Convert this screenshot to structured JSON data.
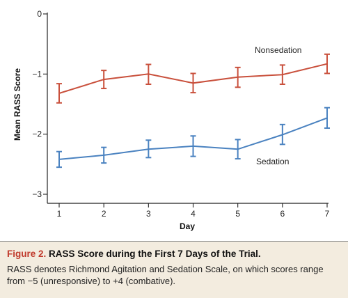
{
  "chart_data": {
    "type": "line",
    "xlabel": "Day",
    "ylabel": "Mean RASS Score",
    "x": [
      1,
      2,
      3,
      4,
      5,
      6,
      7
    ],
    "xlim": [
      0.8,
      7.05
    ],
    "ylim": [
      -3,
      0
    ],
    "yticks": [
      0,
      -1,
      -2,
      -3
    ],
    "ytick_labels": [
      "0",
      "−1",
      "−2",
      "−3"
    ],
    "xtick_labels": [
      "1",
      "2",
      "3",
      "4",
      "5",
      "6",
      "7"
    ],
    "grid": false,
    "error_bars": true,
    "series": [
      {
        "name": "Nonsedation",
        "color": "#c9503c",
        "values": [
          -1.32,
          -1.09,
          -1.0,
          -1.15,
          -1.05,
          -1.01,
          -0.83
        ],
        "lower": [
          -1.48,
          -1.24,
          -1.17,
          -1.31,
          -1.22,
          -1.17,
          -0.99
        ],
        "upper": [
          -1.16,
          -0.94,
          -0.84,
          -0.99,
          -0.89,
          -0.85,
          -0.67
        ]
      },
      {
        "name": "Sedation",
        "color": "#4a82c0",
        "values": [
          -2.42,
          -2.35,
          -2.25,
          -2.2,
          -2.25,
          -2.01,
          -1.73
        ],
        "lower": [
          -2.55,
          -2.48,
          -2.39,
          -2.37,
          -2.41,
          -2.17,
          -1.9
        ],
        "upper": [
          -2.29,
          -2.22,
          -2.1,
          -2.03,
          -2.09,
          -1.84,
          -1.56
        ]
      }
    ]
  },
  "caption": {
    "figure_label": "Figure 2.",
    "title": "RASS Score during the First 7 Days of the Trial.",
    "body": "RASS denotes Richmond Agitation and Sedation Scale, on which scores range from −5 (unresponsive) to +4 (combative)."
  }
}
